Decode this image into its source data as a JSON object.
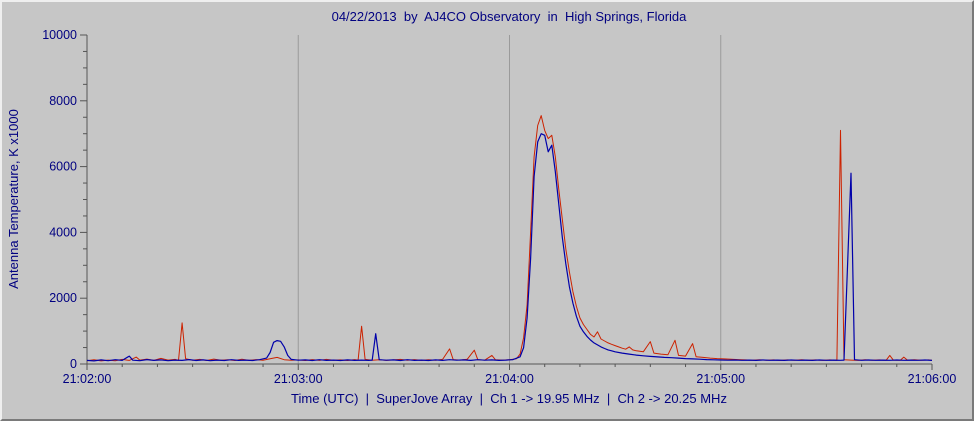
{
  "window": {
    "background": "#c6c6c6",
    "text_color": "#000080"
  },
  "chart_data": {
    "type": "line",
    "title": "04/22/2013  by  AJ4CO Observatory  in  High Springs, Florida",
    "xlabel": "Time (UTC)  |  SuperJove Array  |  Ch 1 -> 19.95 MHz  |  Ch 2 -> 20.25 MHz",
    "ylabel": "Antenna Temperature, K x1000",
    "legend": "none",
    "grid": "vertical-major-only",
    "text_color": "#000080",
    "grid_color": "#9a9a9a",
    "axis_color": "#555555",
    "x_range_seconds": [
      0,
      240
    ],
    "x_ticks": [
      {
        "t": 0,
        "label": "21:02:00"
      },
      {
        "t": 60,
        "label": "21:03:00"
      },
      {
        "t": 120,
        "label": "21:04:00"
      },
      {
        "t": 180,
        "label": "21:05:00"
      },
      {
        "t": 240,
        "label": "21:06:00"
      }
    ],
    "x_minor_step_seconds": 10,
    "ylim": [
      0,
      10000
    ],
    "y_major_step": 2000,
    "y_minor_step": 500,
    "y_tick_labels": [
      "0",
      "2000",
      "4000",
      "6000",
      "8000",
      "10000"
    ],
    "series": [
      {
        "name": "Ch 1 -> 19.95 MHz",
        "color": "#cc2200",
        "stroke_width": 1,
        "points": [
          [
            0,
            100
          ],
          [
            2,
            130
          ],
          [
            4,
            95
          ],
          [
            6,
            120
          ],
          [
            8,
            100
          ],
          [
            10,
            140
          ],
          [
            12,
            110
          ],
          [
            14,
            210
          ],
          [
            15,
            120
          ],
          [
            17,
            150
          ],
          [
            19,
            110
          ],
          [
            21,
            170
          ],
          [
            23,
            120
          ],
          [
            25,
            140
          ],
          [
            26,
            110
          ],
          [
            27,
            1250
          ],
          [
            28,
            160
          ],
          [
            30,
            115
          ],
          [
            32,
            140
          ],
          [
            34,
            105
          ],
          [
            36,
            150
          ],
          [
            38,
            115
          ],
          [
            40,
            130
          ],
          [
            42,
            105
          ],
          [
            44,
            145
          ],
          [
            46,
            110
          ],
          [
            48,
            135
          ],
          [
            50,
            115
          ],
          [
            52,
            160
          ],
          [
            54,
            200
          ],
          [
            56,
            130
          ],
          [
            58,
            115
          ],
          [
            60,
            125
          ],
          [
            62,
            105
          ],
          [
            64,
            135
          ],
          [
            66,
            110
          ],
          [
            68,
            140
          ],
          [
            70,
            115
          ],
          [
            72,
            125
          ],
          [
            74,
            105
          ],
          [
            76,
            135
          ],
          [
            77,
            120
          ],
          [
            78,
            1150
          ],
          [
            79,
            140
          ],
          [
            81,
            115
          ],
          [
            83,
            130
          ],
          [
            85,
            110
          ],
          [
            87,
            125
          ],
          [
            89,
            140
          ],
          [
            91,
            115
          ],
          [
            93,
            135
          ],
          [
            95,
            110
          ],
          [
            97,
            130
          ],
          [
            99,
            115
          ],
          [
            101,
            140
          ],
          [
            103,
            460
          ],
          [
            104,
            135
          ],
          [
            106,
            120
          ],
          [
            108,
            145
          ],
          [
            110,
            420
          ],
          [
            111,
            130
          ],
          [
            113,
            120
          ],
          [
            115,
            260
          ],
          [
            116,
            130
          ],
          [
            118,
            120
          ],
          [
            120,
            130
          ],
          [
            122,
            160
          ],
          [
            123,
            300
          ],
          [
            124,
            800
          ],
          [
            125,
            1800
          ],
          [
            126,
            4000
          ],
          [
            127,
            6300
          ],
          [
            128,
            7250
          ],
          [
            129,
            7550
          ],
          [
            130,
            7100
          ],
          [
            131,
            6850
          ],
          [
            132,
            6950
          ],
          [
            133,
            6300
          ],
          [
            134,
            5300
          ],
          [
            135,
            4400
          ],
          [
            136,
            3500
          ],
          [
            137,
            2800
          ],
          [
            138,
            2200
          ],
          [
            139,
            1750
          ],
          [
            140,
            1400
          ],
          [
            141,
            1200
          ],
          [
            142,
            1050
          ],
          [
            143,
            900
          ],
          [
            144,
            820
          ],
          [
            145,
            980
          ],
          [
            146,
            760
          ],
          [
            147,
            700
          ],
          [
            148,
            640
          ],
          [
            149,
            600
          ],
          [
            150,
            560
          ],
          [
            151,
            520
          ],
          [
            152,
            480
          ],
          [
            153,
            450
          ],
          [
            154,
            520
          ],
          [
            155,
            430
          ],
          [
            156,
            400
          ],
          [
            158,
            370
          ],
          [
            160,
            680
          ],
          [
            161,
            330
          ],
          [
            163,
            300
          ],
          [
            165,
            280
          ],
          [
            167,
            720
          ],
          [
            168,
            260
          ],
          [
            170,
            240
          ],
          [
            172,
            620
          ],
          [
            173,
            220
          ],
          [
            175,
            200
          ],
          [
            177,
            180
          ],
          [
            179,
            165
          ],
          [
            181,
            155
          ],
          [
            183,
            145
          ],
          [
            185,
            135
          ],
          [
            187,
            125
          ],
          [
            189,
            115
          ],
          [
            191,
            130
          ],
          [
            193,
            115
          ],
          [
            195,
            125
          ],
          [
            197,
            110
          ],
          [
            199,
            125
          ],
          [
            201,
            115
          ],
          [
            203,
            130
          ],
          [
            205,
            115
          ],
          [
            207,
            125
          ],
          [
            209,
            110
          ],
          [
            211,
            125
          ],
          [
            213,
            115
          ],
          [
            214,
            7100
          ],
          [
            215,
            130
          ],
          [
            217,
            120
          ],
          [
            219,
            110
          ],
          [
            221,
            130
          ],
          [
            223,
            115
          ],
          [
            225,
            125
          ],
          [
            227,
            115
          ],
          [
            228,
            260
          ],
          [
            229,
            120
          ],
          [
            231,
            115
          ],
          [
            232,
            210
          ],
          [
            233,
            120
          ],
          [
            235,
            130
          ],
          [
            237,
            115
          ],
          [
            239,
            125
          ],
          [
            240,
            110
          ]
        ]
      },
      {
        "name": "Ch 2 -> 20.25 MHz",
        "color": "#0000aa",
        "stroke_width": 1.2,
        "points": [
          [
            0,
            110
          ],
          [
            2,
            95
          ],
          [
            4,
            125
          ],
          [
            6,
            100
          ],
          [
            8,
            130
          ],
          [
            10,
            110
          ],
          [
            12,
            240
          ],
          [
            13,
            115
          ],
          [
            15,
            100
          ],
          [
            17,
            135
          ],
          [
            19,
            110
          ],
          [
            21,
            125
          ],
          [
            23,
            100
          ],
          [
            25,
            120
          ],
          [
            27,
            110
          ],
          [
            29,
            135
          ],
          [
            31,
            105
          ],
          [
            33,
            125
          ],
          [
            35,
            100
          ],
          [
            37,
            120
          ],
          [
            39,
            105
          ],
          [
            41,
            130
          ],
          [
            43,
            110
          ],
          [
            45,
            120
          ],
          [
            47,
            105
          ],
          [
            49,
            130
          ],
          [
            51,
            180
          ],
          [
            52,
            350
          ],
          [
            53,
            660
          ],
          [
            54,
            710
          ],
          [
            55,
            690
          ],
          [
            56,
            520
          ],
          [
            57,
            260
          ],
          [
            58,
            140
          ],
          [
            60,
            115
          ],
          [
            62,
            125
          ],
          [
            64,
            105
          ],
          [
            66,
            130
          ],
          [
            68,
            110
          ],
          [
            70,
            120
          ],
          [
            72,
            105
          ],
          [
            74,
            125
          ],
          [
            76,
            110
          ],
          [
            78,
            120
          ],
          [
            80,
            110
          ],
          [
            81,
            120
          ],
          [
            82,
            920
          ],
          [
            83,
            130
          ],
          [
            85,
            115
          ],
          [
            87,
            125
          ],
          [
            89,
            105
          ],
          [
            91,
            130
          ],
          [
            93,
            110
          ],
          [
            95,
            120
          ],
          [
            97,
            105
          ],
          [
            99,
            125
          ],
          [
            101,
            110
          ],
          [
            103,
            130
          ],
          [
            105,
            115
          ],
          [
            107,
            125
          ],
          [
            109,
            110
          ],
          [
            111,
            130
          ],
          [
            113,
            115
          ],
          [
            115,
            125
          ],
          [
            117,
            110
          ],
          [
            119,
            120
          ],
          [
            121,
            135
          ],
          [
            123,
            220
          ],
          [
            124,
            500
          ],
          [
            125,
            1400
          ],
          [
            126,
            3200
          ],
          [
            127,
            5700
          ],
          [
            128,
            6750
          ],
          [
            129,
            7000
          ],
          [
            130,
            6950
          ],
          [
            131,
            6450
          ],
          [
            132,
            6650
          ],
          [
            133,
            5850
          ],
          [
            134,
            4850
          ],
          [
            135,
            3850
          ],
          [
            136,
            3050
          ],
          [
            137,
            2350
          ],
          [
            138,
            1850
          ],
          [
            139,
            1450
          ],
          [
            140,
            1150
          ],
          [
            141,
            980
          ],
          [
            142,
            840
          ],
          [
            143,
            730
          ],
          [
            144,
            640
          ],
          [
            145,
            580
          ],
          [
            146,
            520
          ],
          [
            147,
            470
          ],
          [
            148,
            430
          ],
          [
            149,
            400
          ],
          [
            150,
            370
          ],
          [
            152,
            330
          ],
          [
            154,
            300
          ],
          [
            156,
            270
          ],
          [
            158,
            250
          ],
          [
            160,
            230
          ],
          [
            162,
            215
          ],
          [
            164,
            200
          ],
          [
            166,
            190
          ],
          [
            168,
            180
          ],
          [
            170,
            165
          ],
          [
            172,
            155
          ],
          [
            174,
            145
          ],
          [
            176,
            135
          ],
          [
            178,
            128
          ],
          [
            180,
            122
          ],
          [
            182,
            115
          ],
          [
            184,
            122
          ],
          [
            186,
            112
          ],
          [
            188,
            120
          ],
          [
            190,
            110
          ],
          [
            192,
            122
          ],
          [
            194,
            112
          ],
          [
            196,
            120
          ],
          [
            198,
            110
          ],
          [
            200,
            122
          ],
          [
            202,
            112
          ],
          [
            204,
            120
          ],
          [
            206,
            110
          ],
          [
            208,
            122
          ],
          [
            210,
            112
          ],
          [
            212,
            120
          ],
          [
            214,
            112
          ],
          [
            215,
            118
          ],
          [
            217,
            5800
          ],
          [
            218,
            130
          ],
          [
            220,
            112
          ],
          [
            222,
            122
          ],
          [
            224,
            112
          ],
          [
            226,
            120
          ],
          [
            228,
            112
          ],
          [
            230,
            122
          ],
          [
            232,
            112
          ],
          [
            234,
            120
          ],
          [
            236,
            112
          ],
          [
            238,
            122
          ],
          [
            240,
            108
          ]
        ]
      }
    ]
  }
}
